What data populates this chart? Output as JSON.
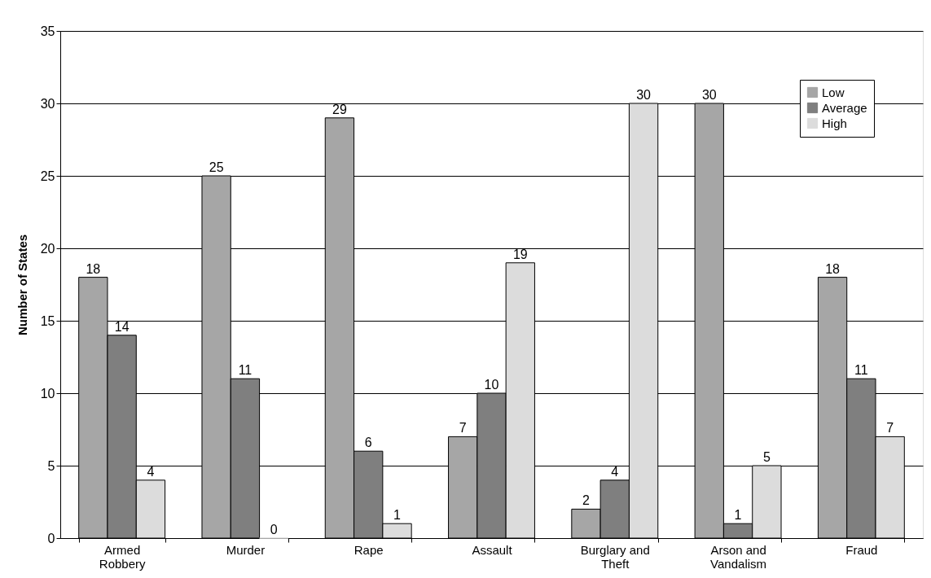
{
  "chart_data": {
    "type": "bar",
    "ylabel": "Number of States",
    "categories": [
      "Armed Robbery",
      "Murder",
      "Rape",
      "Assault",
      "Burglary and Theft",
      "Arson and Vandalism",
      "Fraud"
    ],
    "series": [
      {
        "name": "Low",
        "color": "#a6a6a6",
        "values": [
          18,
          25,
          29,
          7,
          2,
          30,
          18
        ]
      },
      {
        "name": "Average",
        "color": "#7f7f7f",
        "values": [
          14,
          11,
          6,
          10,
          4,
          1,
          11
        ]
      },
      {
        "name": "High",
        "color": "#dcdcdc",
        "values": [
          4,
          0,
          1,
          19,
          30,
          5,
          7
        ]
      }
    ],
    "ylim": [
      0,
      35
    ],
    "yticks": [
      0,
      5,
      10,
      15,
      20,
      25,
      30,
      35
    ],
    "grid": "y",
    "legend": "top right",
    "data_labels": true
  }
}
